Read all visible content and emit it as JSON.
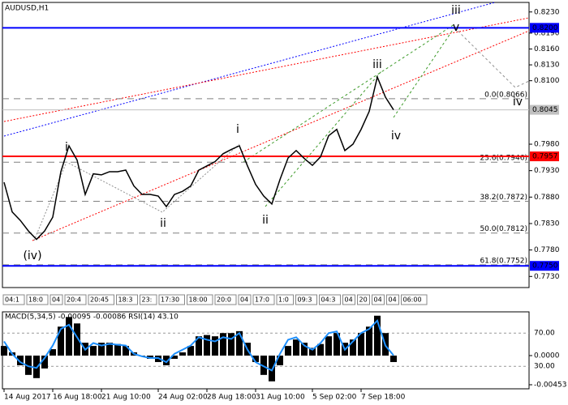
{
  "chart_data": [
    {
      "type": "line",
      "title": "AUDUSD,H1",
      "ylim": [
        0.7709,
        0.8248
      ],
      "yticks": [
        {
          "value": 0.823,
          "label": "0.8230"
        },
        {
          "value": 0.819,
          "label": "0.8190"
        },
        {
          "value": 0.816,
          "label": "0.8160"
        },
        {
          "value": 0.813,
          "label": "0.8130"
        },
        {
          "value": 0.81,
          "label": "0.8100"
        },
        {
          "value": 0.798,
          "label": "0.7980"
        },
        {
          "value": 0.793,
          "label": "0.7930"
        },
        {
          "value": 0.788,
          "label": "0.7880"
        },
        {
          "value": 0.783,
          "label": "0.7830"
        },
        {
          "value": 0.778,
          "label": "0.7780"
        },
        {
          "value": 0.773,
          "label": "0.7730"
        }
      ],
      "series": [
        {
          "color": "#000000",
          "values": [
            0.7908,
            0.7852,
            0.7836,
            0.7816,
            0.78,
            0.7816,
            0.7842,
            0.7928,
            0.7977,
            0.795,
            0.7885,
            0.7924,
            0.7922,
            0.7928,
            0.7928,
            0.7931,
            0.7901,
            0.7885,
            0.7885,
            0.7882,
            0.7862,
            0.7885,
            0.7891,
            0.7901,
            0.7931,
            0.7939,
            0.7947,
            0.7962,
            0.797,
            0.7977,
            0.7939,
            0.7904,
            0.7882,
            0.7867,
            0.7913,
            0.7954,
            0.7968,
            0.7953,
            0.794,
            0.7956,
            0.7996,
            0.8008,
            0.7968,
            0.798,
            0.8008,
            0.8042,
            0.8107,
            0.8069,
            0.8045
          ]
        }
      ],
      "levels": [
        {
          "value": 0.82,
          "label": "0.8200",
          "color": "#0000ff"
        },
        {
          "value": 0.7957,
          "label": "0.7957",
          "color": "#ff0000"
        },
        {
          "value": 0.775,
          "label": "0.7750",
          "color": "#0000ff"
        }
      ],
      "last_price": {
        "value": 0.8045,
        "label": "0.8045",
        "color": "#c0c0c0"
      },
      "fib_levels": [
        {
          "value": 0.8066,
          "label": "0.0(0.8066)"
        },
        {
          "value": 0.7946,
          "label": "23.6(0.7946)"
        },
        {
          "value": 0.7872,
          "label": "38.2(0.7872)"
        },
        {
          "value": 0.7812,
          "label": "50.0(0.7812)"
        },
        {
          "value": 0.7752,
          "label": "61.8(0.7752)"
        }
      ],
      "annotations": [
        {
          "text": "(iv)",
          "color": "#e00000"
        },
        {
          "text": "i",
          "color": "#808080"
        },
        {
          "text": "ii",
          "color": "#808080"
        },
        {
          "text": "i",
          "color": "#3c9a28"
        },
        {
          "text": "ii",
          "color": "#3c9a28"
        },
        {
          "text": "iii",
          "color": "#3c9a28"
        },
        {
          "text": "iv",
          "color": "#3c9a28"
        },
        {
          "text": "v",
          "color": "#3c9a28"
        },
        {
          "text": "iii",
          "color": "#808080"
        },
        {
          "text": "iv",
          "color": "#808080"
        }
      ],
      "time_markers": [
        "04:1",
        "18:0",
        "04",
        "20:4",
        "20:45",
        "18:3",
        "23:",
        "17:30",
        "18:00",
        "20:0",
        "04",
        "17:0",
        "1:0",
        "09:3",
        "04:3",
        "04",
        "20",
        "04",
        "04",
        "06:00"
      ]
    },
    {
      "type": "bar",
      "title": "MACD(5,34,5) -0.00095 -0.00086 RSI(14) 43.10",
      "categories": [
        "14 Aug 2017",
        null,
        null,
        null,
        null,
        null,
        "16 Aug 18:00",
        null,
        null,
        null,
        null,
        null,
        "21 Aug 10:00",
        null,
        null,
        null,
        null,
        null,
        null,
        "24 Aug 02:00",
        null,
        null,
        null,
        null,
        null,
        "28 Aug 18:00",
        null,
        null,
        null,
        null,
        null,
        "31 Aug 10:00",
        null,
        null,
        null,
        null,
        null,
        null,
        "5 Sep 02:00",
        null,
        null,
        null,
        null,
        null,
        "7 Sep 18:00",
        null,
        null,
        null,
        null
      ],
      "ylim": [
        -0.00516,
        0.0068
      ],
      "yticks": [
        {
          "value": 0,
          "label": "0.0000"
        },
        -0.00453
      ],
      "y2lim": [
        2.9,
        95.6
      ],
      "y2ticks": [
        {
          "value": 70,
          "label": "70.00"
        },
        {
          "value": 30,
          "label": "30.00"
        }
      ],
      "series": [
        {
          "color": "#000000",
          "values": [
            0.0015,
            0.0005,
            -0.0015,
            -0.003,
            -0.0035,
            -0.002,
            0.001,
            0.0045,
            0.006,
            0.005,
            0.002,
            0.0015,
            0.002,
            0.002,
            0.0018,
            0.0015,
            0.0005,
            0,
            -0.0005,
            -0.001,
            -0.0015,
            -0.0005,
            0.0005,
            0.0015,
            0.003,
            0.0032,
            0.003,
            0.0035,
            0.0035,
            0.0038,
            0.002,
            -0.001,
            -0.003,
            -0.004,
            -0.0015,
            0.0015,
            0.0025,
            0.002,
            0.0012,
            0.0018,
            0.003,
            0.0035,
            0.002,
            0.0025,
            0.0035,
            0.0045,
            0.0062,
            0.0035,
            -0.001
          ]
        },
        {
          "color": "#1e90ff",
          "axis": "y2",
          "values": [
            60,
            45,
            35,
            30,
            28,
            40,
            55,
            75,
            80,
            65,
            50,
            58,
            55,
            57,
            56,
            55,
            45,
            42,
            40,
            40,
            35,
            45,
            50,
            55,
            65,
            62,
            60,
            65,
            63,
            70,
            50,
            35,
            30,
            25,
            45,
            62,
            65,
            55,
            50,
            58,
            70,
            72,
            50,
            60,
            70,
            75,
            85,
            55,
            43.1
          ]
        }
      ]
    }
  ]
}
